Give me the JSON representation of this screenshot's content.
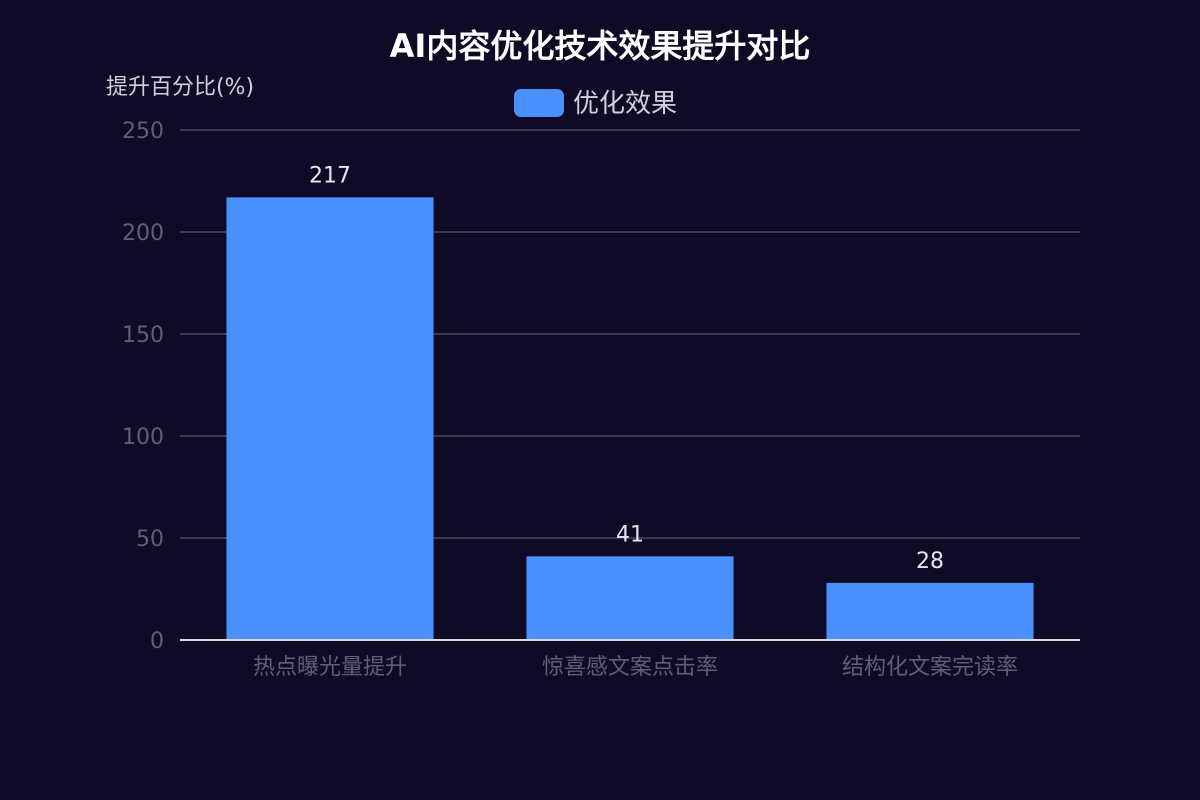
{
  "chart_data": {
    "type": "bar",
    "title": "AI内容优化技术效果提升对比",
    "ylabel": "提升百分比(%)",
    "xlabel": "",
    "categories": [
      "热点曝光量提升",
      "惊喜感文案点击率",
      "结构化文案完读率"
    ],
    "series": [
      {
        "name": "优化效果",
        "values": [
          217,
          41,
          28
        ],
        "color": "#4a90ff"
      }
    ],
    "ylim": [
      0,
      250
    ],
    "yticks": [
      0,
      50,
      100,
      150,
      200,
      250
    ],
    "grid": true,
    "legend": "top-center"
  }
}
